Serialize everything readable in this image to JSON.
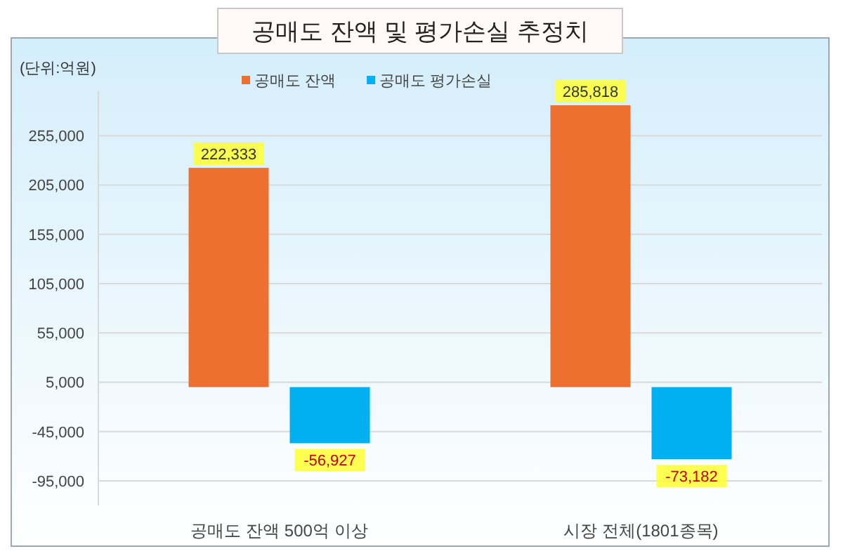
{
  "chart_data": {
    "type": "bar",
    "title": "공매도 잔액 및 평가손실 추정치",
    "ylabel": "(단위:억원)",
    "categories": [
      "공매도 잔액 500억 이상",
      "시장 전체(1801종목)"
    ],
    "series": [
      {
        "name": "공매도 잔액",
        "color": "#ed7031",
        "values": [
          222333,
          285818
        ],
        "value_labels": [
          "222,333",
          "285,818"
        ]
      },
      {
        "name": "공매도 평가손실",
        "color": "#00b0f0",
        "values": [
          -56927,
          -73182
        ],
        "value_labels": [
          "-56,927",
          "-73,182"
        ]
      }
    ],
    "ylim": [
      -120000,
      300000
    ],
    "yticks": [
      {
        "value": -95000,
        "label": "-95,000"
      },
      {
        "value": -45000,
        "label": "-45,000"
      },
      {
        "value": 5000,
        "label": "5,000"
      },
      {
        "value": 55000,
        "label": "55,000"
      },
      {
        "value": 105000,
        "label": "105,000"
      },
      {
        "value": 155000,
        "label": "155,000"
      },
      {
        "value": 205000,
        "label": "205,000"
      },
      {
        "value": 255000,
        "label": "255,000"
      }
    ],
    "grid": "y",
    "legend": "top"
  }
}
